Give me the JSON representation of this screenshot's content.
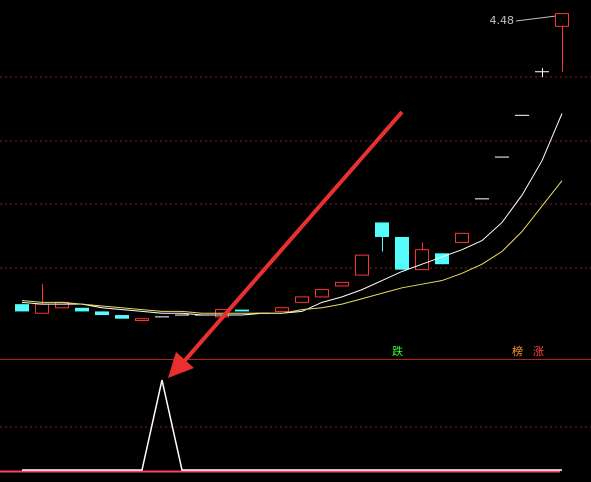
{
  "chart_data": {
    "type": "candlestick",
    "open": [
      2.88,
      2.83,
      2.86,
      2.86,
      2.84,
      2.82,
      2.79,
      2.81,
      2.82,
      2.82,
      2.81,
      2.85,
      2.83,
      2.84,
      2.89,
      2.92,
      2.98,
      3.04,
      3.33,
      3.25,
      3.07,
      3.16,
      3.22,
      3.46,
      3.69,
      3.92,
      4.16,
      4.41
    ],
    "high": [
      2.88,
      2.99,
      2.89,
      2.86,
      2.84,
      2.82,
      2.8,
      2.81,
      2.82,
      2.82,
      2.85,
      2.85,
      2.83,
      2.86,
      2.92,
      2.96,
      3.0,
      3.15,
      3.33,
      3.25,
      3.22,
      3.16,
      3.27,
      3.46,
      3.69,
      3.92,
      4.18,
      4.48
    ],
    "low": [
      2.84,
      2.83,
      2.86,
      2.84,
      2.82,
      2.8,
      2.79,
      2.81,
      2.82,
      2.82,
      2.81,
      2.84,
      2.83,
      2.84,
      2.89,
      2.92,
      2.98,
      3.04,
      3.17,
      3.07,
      3.07,
      3.1,
      3.22,
      3.46,
      3.69,
      3.92,
      4.13,
      4.16
    ],
    "close": [
      2.84,
      2.88,
      2.89,
      2.84,
      2.82,
      2.8,
      2.8,
      2.81,
      2.82,
      2.82,
      2.85,
      2.84,
      2.83,
      2.86,
      2.92,
      2.96,
      3.0,
      3.15,
      3.25,
      3.07,
      3.18,
      3.1,
      3.27,
      3.46,
      3.69,
      3.92,
      4.16,
      4.48
    ],
    "up_color": "#ff3232",
    "down_color": "#54fcfc",
    "flat_color": "#ffffff",
    "lines": [
      {
        "color": "#ffffff",
        "values": [
          2.89,
          2.88,
          2.88,
          2.88,
          2.86,
          2.85,
          2.84,
          2.83,
          2.83,
          2.82,
          2.82,
          2.82,
          2.83,
          2.83,
          2.84,
          2.89,
          2.92,
          2.96,
          3.01,
          3.06,
          3.1,
          3.14,
          3.18,
          3.23,
          3.33,
          3.48,
          3.67,
          3.93
        ]
      },
      {
        "color": "#e8e060",
        "values": [
          2.9,
          2.89,
          2.89,
          2.88,
          2.87,
          2.86,
          2.85,
          2.84,
          2.84,
          2.83,
          2.83,
          2.83,
          2.83,
          2.83,
          2.85,
          2.86,
          2.88,
          2.91,
          2.94,
          2.97,
          2.99,
          3.01,
          3.05,
          3.1,
          3.17,
          3.28,
          3.42,
          3.56
        ]
      }
    ],
    "ylim": [
      2.6,
      4.5
    ],
    "max_label": 4.48,
    "signals": [
      "跌",
      "榜",
      "涨"
    ],
    "indicator": {
      "color": "#ffffff",
      "ylim": [
        0,
        1
      ],
      "values": [
        0,
        0,
        0,
        0,
        0,
        0,
        0,
        1,
        0,
        0,
        0,
        0,
        0,
        0,
        0,
        0,
        0,
        0,
        0,
        0,
        0,
        0,
        0,
        0,
        0,
        0,
        0,
        0
      ]
    }
  }
}
